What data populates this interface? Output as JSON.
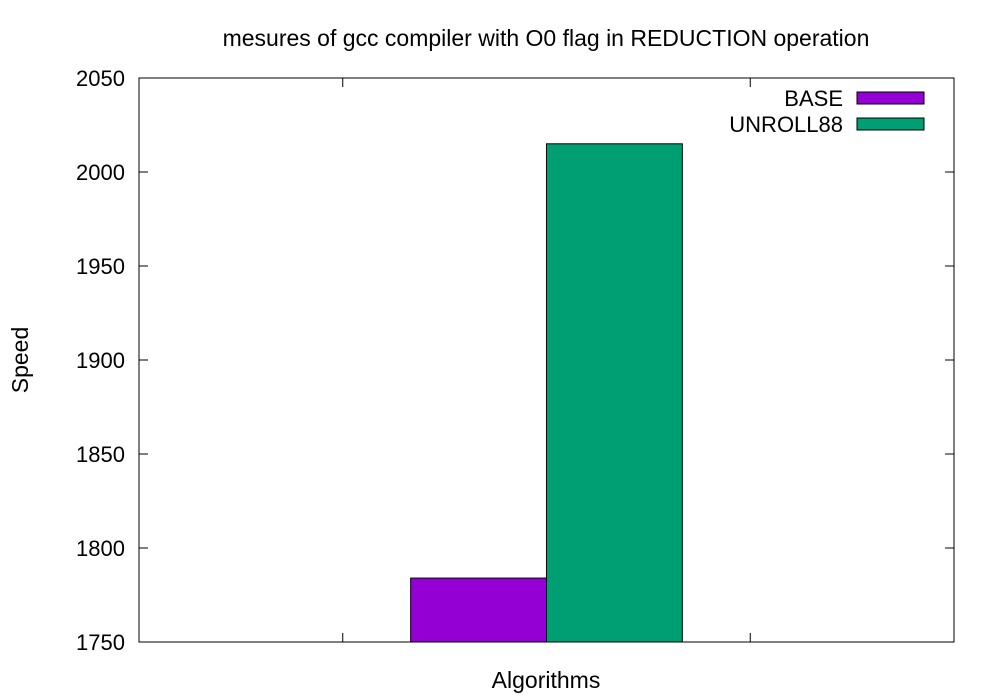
{
  "chart_data": {
    "type": "bar",
    "title": "mesures of gcc compiler with O0 flag in REDUCTION operation",
    "xlabel": "Algorithms",
    "ylabel": "Speed",
    "ylim": [
      1750,
      2050
    ],
    "yticks": [
      1750,
      1800,
      1850,
      1900,
      1950,
      2000,
      2050
    ],
    "grid": false,
    "legend_position": "top-right",
    "series": [
      {
        "name": "BASE",
        "color": "#9400d3",
        "values": [
          1784
        ]
      },
      {
        "name": "UNROLL88",
        "color": "#009e73",
        "values": [
          2015
        ]
      }
    ]
  }
}
